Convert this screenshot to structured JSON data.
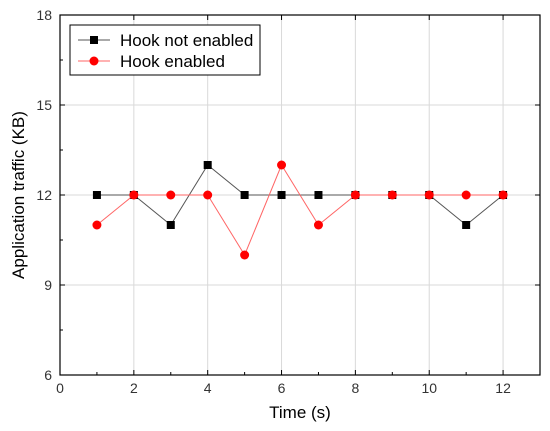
{
  "chart_data": {
    "type": "line",
    "title": "",
    "xlabel": "Time (s)",
    "ylabel": "Application traffic (KB)",
    "xlim": [
      0,
      13
    ],
    "ylim": [
      6,
      18
    ],
    "xticks": [
      0,
      2,
      4,
      6,
      8,
      10,
      12
    ],
    "yticks": [
      6,
      9,
      12,
      15,
      18
    ],
    "grid": true,
    "legend_position": "top-left",
    "x": [
      1,
      2,
      3,
      4,
      5,
      6,
      7,
      8,
      9,
      10,
      11,
      12
    ],
    "series": [
      {
        "name": "Hook not enabled",
        "values": [
          12,
          12,
          11,
          13,
          12,
          12,
          12,
          12,
          12,
          12,
          11,
          12
        ],
        "color": "#000000",
        "line_color": "#555555",
        "marker": "square"
      },
      {
        "name": "Hook enabled",
        "values": [
          11,
          12,
          12,
          12,
          10,
          13,
          11,
          12,
          12,
          12,
          12,
          12
        ],
        "color": "#ff0000",
        "line_color": "#ff6666",
        "marker": "circle"
      }
    ]
  }
}
